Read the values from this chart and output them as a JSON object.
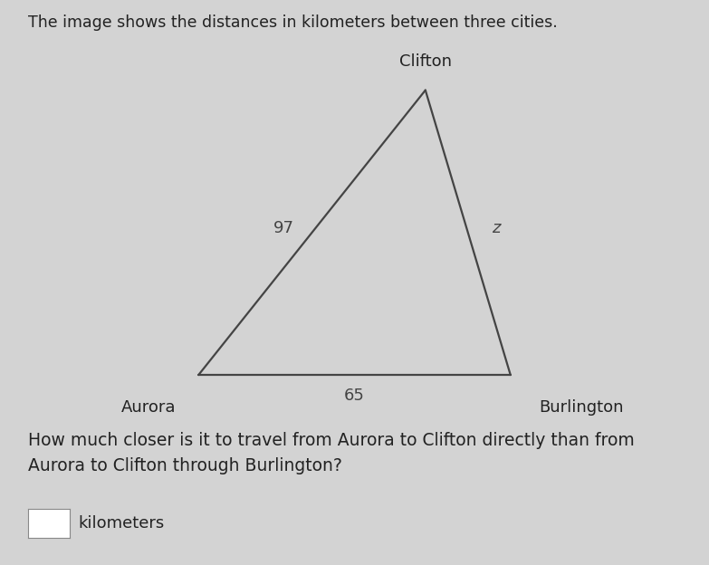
{
  "background_color": "#d3d3d3",
  "title_text": "The image shows the distances in kilometers between three cities.",
  "title_fontsize": 12.5,
  "title_color": "#222222",
  "cities": {
    "Aurora": [
      0.28,
      0.12
    ],
    "Burlington": [
      0.72,
      0.12
    ],
    "Clifton": [
      0.6,
      0.82
    ]
  },
  "edges": [
    {
      "from": "Aurora",
      "to": "Clifton",
      "label": "97",
      "italic": false
    },
    {
      "from": "Burlington",
      "to": "Clifton",
      "label": "z",
      "italic": true
    },
    {
      "from": "Aurora",
      "to": "Burlington",
      "label": "65",
      "italic": false
    }
  ],
  "edge_label_offsets": {
    "Aurora-Clifton": [
      -0.04,
      0.01
    ],
    "Burlington-Clifton": [
      0.04,
      0.01
    ],
    "Aurora-Burlington": [
      0.0,
      -0.05
    ]
  },
  "city_label_offsets": {
    "Aurora": [
      -0.07,
      -0.06
    ],
    "Burlington": [
      0.1,
      -0.06
    ],
    "Clifton": [
      0.0,
      0.05
    ]
  },
  "line_color": "#444444",
  "line_width": 1.6,
  "label_fontsize": 13,
  "city_fontsize": 13,
  "question_text": "How much closer is it to travel from Aurora to Clifton directly than from\nAurora to Clifton through Burlington?",
  "question_fontsize": 13.5,
  "question_color": "#222222",
  "question_bold": false,
  "answer_box_label": "kilometers",
  "answer_fontsize": 13
}
